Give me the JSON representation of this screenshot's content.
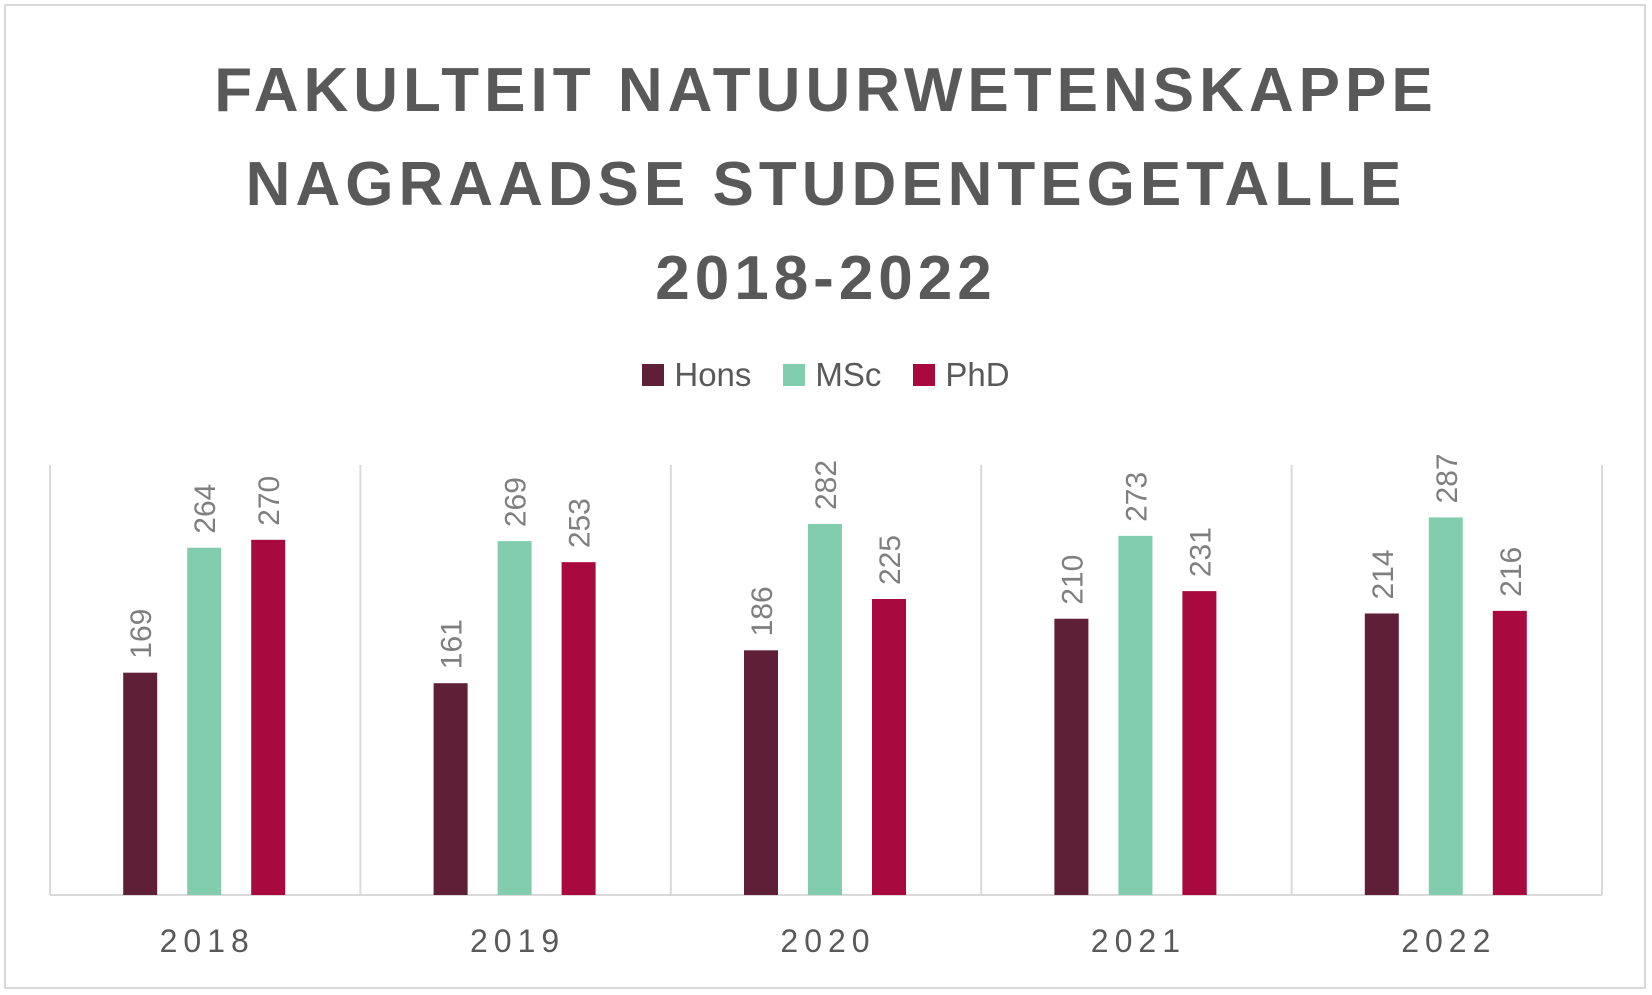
{
  "title_lines": [
    "FAKULTEIT NATUURWETENSKAPPE",
    "NAGRAADSE STUDENTEGETALLE",
    "2018-2022"
  ],
  "legend": [
    {
      "label": "Hons",
      "color": "#5e1f37"
    },
    {
      "label": "MSc",
      "color": "#81cdad"
    },
    {
      "label": "PhD",
      "color": "#a8093e"
    }
  ],
  "chart_data": {
    "type": "bar",
    "title": "FAKULTEIT NATUURWETENSKAPPE NAGRAADSE STUDENTEGETALLE 2018-2022",
    "categories": [
      "2018",
      "2019",
      "2020",
      "2021",
      "2022"
    ],
    "series": [
      {
        "name": "Hons",
        "color": "#5e1f37",
        "values": [
          169,
          161,
          186,
          210,
          214
        ]
      },
      {
        "name": "MSc",
        "color": "#81cdad",
        "values": [
          264,
          269,
          282,
          273,
          287
        ]
      },
      {
        "name": "PhD",
        "color": "#a8093e",
        "values": [
          270,
          253,
          225,
          231,
          216
        ]
      }
    ],
    "xlabel": "",
    "ylabel": "",
    "ylim": [
      0,
      350
    ],
    "legend_position": "top",
    "data_labels": "vertical"
  }
}
